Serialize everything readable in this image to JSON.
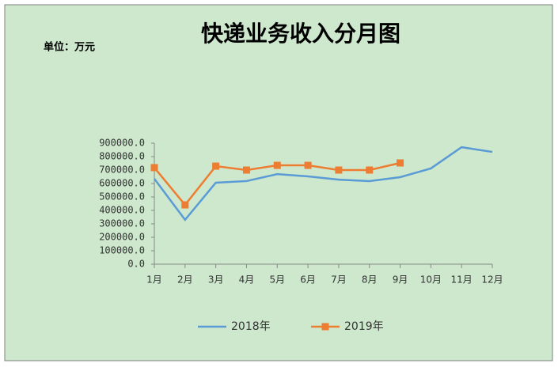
{
  "chart_data": {
    "type": "line",
    "title": "快递业务收入分月图",
    "unit_label": "单位：万元",
    "categories": [
      "1月",
      "2月",
      "3月",
      "4月",
      "5月",
      "6月",
      "7月",
      "8月",
      "9月",
      "10月",
      "11月",
      "12月"
    ],
    "series": [
      {
        "name": "2018年",
        "color": "#5b9bd5",
        "marker": "none",
        "values": [
          635000,
          330000,
          606000,
          618000,
          670000,
          653000,
          629000,
          618000,
          647000,
          712000,
          870000,
          835000
        ]
      },
      {
        "name": "2019年",
        "color": "#ed7d31",
        "marker": "square",
        "values": [
          718000,
          441000,
          729000,
          700000,
          735000,
          735000,
          700000,
          700000,
          753000,
          null,
          null,
          null
        ]
      }
    ],
    "ylim": [
      0,
      900000
    ],
    "yticks": [
      {
        "value": 0,
        "label": "0.0"
      },
      {
        "value": 100000,
        "label": "100000.0"
      },
      {
        "value": 200000,
        "label": "200000.0"
      },
      {
        "value": 300000,
        "label": "300000.0"
      },
      {
        "value": 400000,
        "label": "400000.0"
      },
      {
        "value": 500000,
        "label": "500000.0"
      },
      {
        "value": 600000,
        "label": "600000.0"
      },
      {
        "value": 700000,
        "label": "700000.0"
      },
      {
        "value": 800000,
        "label": "800000.0"
      },
      {
        "value": 900000,
        "label": "900000.0"
      }
    ],
    "grid": false,
    "legend": "bottom"
  }
}
